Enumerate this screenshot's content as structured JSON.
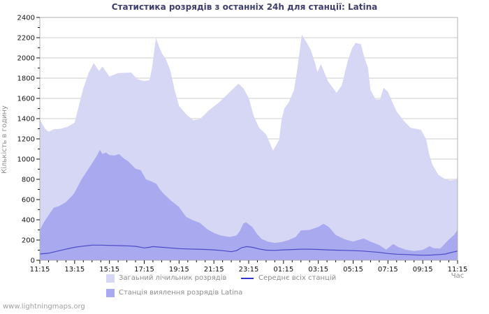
{
  "page": {
    "watermark": "www.lightningmaps.org"
  },
  "chart_data": {
    "type": "area",
    "title": "Статистика розрядів з останніх 24h для станції: Latina",
    "xlabel": "Час",
    "ylabel": "Кількість в годину",
    "ylim": [
      0,
      2400
    ],
    "y_major_step": 200,
    "y_minor_step": 100,
    "x_hours": 24,
    "x_minor_step_hours": 0.5,
    "x_start_label": "11:15",
    "x_unit": "hours_since_start",
    "grid": true,
    "legend_position": "bottom",
    "x_tick_labels": [
      "11:15",
      "13:15",
      "15:15",
      "17:15",
      "19:15",
      "21:15",
      "23:15",
      "01:15",
      "03:15",
      "05:15",
      "07:15",
      "09:15",
      "11:15"
    ],
    "colors": {
      "grid": "#cdcdcd",
      "frame": "#b0b0b0",
      "tick": "#111111",
      "tick_label": "#111111",
      "title": "#3e3e6e",
      "legend_line": "#3232cd"
    },
    "series": [
      {
        "name": "Загаьний лічильник розрядів",
        "type": "area",
        "color": "#d6d6f5",
        "points": [
          [
            0,
            1390
          ],
          [
            0.3,
            1300
          ],
          [
            0.5,
            1270
          ],
          [
            0.8,
            1295
          ],
          [
            1.2,
            1300
          ],
          [
            1.6,
            1320
          ],
          [
            2,
            1360
          ],
          [
            2.5,
            1700
          ],
          [
            2.8,
            1850
          ],
          [
            3.1,
            1950
          ],
          [
            3.4,
            1870
          ],
          [
            3.6,
            1915
          ],
          [
            4,
            1815
          ],
          [
            4.5,
            1850
          ],
          [
            5.25,
            1855
          ],
          [
            5.6,
            1790
          ],
          [
            6,
            1770
          ],
          [
            6.3,
            1780
          ],
          [
            6.45,
            1900
          ],
          [
            6.67,
            2200
          ],
          [
            6.83,
            2120
          ],
          [
            7,
            2050
          ],
          [
            7.25,
            1985
          ],
          [
            7.5,
            1875
          ],
          [
            7.75,
            1680
          ],
          [
            8,
            1525
          ],
          [
            8.4,
            1445
          ],
          [
            8.8,
            1385
          ],
          [
            9.2,
            1395
          ],
          [
            9.7,
            1480
          ],
          [
            10.3,
            1560
          ],
          [
            10.9,
            1660
          ],
          [
            11.4,
            1745
          ],
          [
            11.7,
            1700
          ],
          [
            12,
            1605
          ],
          [
            12.3,
            1420
          ],
          [
            12.6,
            1310
          ],
          [
            13,
            1245
          ],
          [
            13.4,
            1085
          ],
          [
            13.75,
            1190
          ],
          [
            13.9,
            1400
          ],
          [
            14.05,
            1500
          ],
          [
            14.3,
            1560
          ],
          [
            14.6,
            1680
          ],
          [
            14.8,
            1900
          ],
          [
            15.05,
            2230
          ],
          [
            15.3,
            2160
          ],
          [
            15.55,
            2085
          ],
          [
            15.8,
            1955
          ],
          [
            15.95,
            1860
          ],
          [
            16.15,
            1940
          ],
          [
            16.55,
            1770
          ],
          [
            17.05,
            1655
          ],
          [
            17.35,
            1730
          ],
          [
            17.7,
            1975
          ],
          [
            17.95,
            2100
          ],
          [
            18.15,
            2150
          ],
          [
            18.45,
            2135
          ],
          [
            18.65,
            2000
          ],
          [
            18.85,
            1905
          ],
          [
            19,
            1680
          ],
          [
            19.3,
            1590
          ],
          [
            19.55,
            1590
          ],
          [
            19.75,
            1705
          ],
          [
            20,
            1665
          ],
          [
            20.3,
            1545
          ],
          [
            20.5,
            1470
          ],
          [
            20.9,
            1380
          ],
          [
            21.3,
            1310
          ],
          [
            21.9,
            1290
          ],
          [
            22.2,
            1195
          ],
          [
            22.35,
            1060
          ],
          [
            22.55,
            945
          ],
          [
            22.9,
            845
          ],
          [
            23.3,
            800
          ],
          [
            23.6,
            788
          ],
          [
            23.85,
            795
          ],
          [
            24,
            815
          ]
        ]
      },
      {
        "name": "Станція виялення розрядів Latina",
        "type": "area",
        "color": "#a9a9ef",
        "points": [
          [
            0,
            300
          ],
          [
            0.25,
            380
          ],
          [
            0.5,
            445
          ],
          [
            0.8,
            520
          ],
          [
            1.1,
            535
          ],
          [
            1.5,
            575
          ],
          [
            1.9,
            645
          ],
          [
            2,
            670
          ],
          [
            2.4,
            800
          ],
          [
            2.8,
            905
          ],
          [
            3.1,
            985
          ],
          [
            3.3,
            1040
          ],
          [
            3.45,
            1090
          ],
          [
            3.6,
            1050
          ],
          [
            3.8,
            1065
          ],
          [
            4,
            1040
          ],
          [
            4.3,
            1035
          ],
          [
            4.55,
            1050
          ],
          [
            4.8,
            1010
          ],
          [
            5.1,
            975
          ],
          [
            5.5,
            905
          ],
          [
            5.8,
            890
          ],
          [
            5.95,
            845
          ],
          [
            6.1,
            800
          ],
          [
            6.4,
            780
          ],
          [
            6.7,
            755
          ],
          [
            6.9,
            700
          ],
          [
            7.1,
            660
          ],
          [
            7.5,
            595
          ],
          [
            7.9,
            540
          ],
          [
            8,
            525
          ],
          [
            8.4,
            430
          ],
          [
            8.8,
            395
          ],
          [
            9.2,
            370
          ],
          [
            9.6,
            310
          ],
          [
            10,
            270
          ],
          [
            10.4,
            245
          ],
          [
            10.9,
            230
          ],
          [
            11.3,
            245
          ],
          [
            11.5,
            290
          ],
          [
            11.7,
            365
          ],
          [
            11.85,
            375
          ],
          [
            12.2,
            330
          ],
          [
            12.5,
            255
          ],
          [
            12.75,
            210
          ],
          [
            13.1,
            185
          ],
          [
            13.5,
            172
          ],
          [
            13.9,
            180
          ],
          [
            14.3,
            200
          ],
          [
            14.7,
            230
          ],
          [
            15,
            295
          ],
          [
            15.5,
            300
          ],
          [
            16,
            330
          ],
          [
            16.3,
            360
          ],
          [
            16.6,
            330
          ],
          [
            17,
            250
          ],
          [
            17.5,
            208
          ],
          [
            18,
            185
          ],
          [
            18.6,
            215
          ],
          [
            19,
            185
          ],
          [
            19.5,
            150
          ],
          [
            19.9,
            105
          ],
          [
            20.3,
            160
          ],
          [
            20.6,
            130
          ],
          [
            21,
            105
          ],
          [
            21.5,
            92
          ],
          [
            22,
            103
          ],
          [
            22.4,
            140
          ],
          [
            22.6,
            120
          ],
          [
            23,
            115
          ],
          [
            23.5,
            205
          ],
          [
            23.8,
            250
          ],
          [
            24,
            300
          ]
        ]
      },
      {
        "name": "Середнє всіх станцій",
        "type": "line",
        "color": "#4a4ac8",
        "points": [
          [
            0,
            62
          ],
          [
            0.5,
            70
          ],
          [
            1,
            90
          ],
          [
            1.5,
            110
          ],
          [
            2,
            128
          ],
          [
            2.5,
            140
          ],
          [
            3,
            150
          ],
          [
            3.5,
            150
          ],
          [
            4,
            147
          ],
          [
            4.5,
            145
          ],
          [
            5,
            143
          ],
          [
            5.5,
            138
          ],
          [
            6,
            122
          ],
          [
            6.3,
            128
          ],
          [
            6.5,
            135
          ],
          [
            7,
            128
          ],
          [
            7.5,
            122
          ],
          [
            8,
            115
          ],
          [
            8.5,
            112
          ],
          [
            9,
            110
          ],
          [
            9.5,
            107
          ],
          [
            10,
            103
          ],
          [
            10.5,
            95
          ],
          [
            11,
            85
          ],
          [
            11.3,
            95
          ],
          [
            11.6,
            125
          ],
          [
            11.9,
            135
          ],
          [
            12.2,
            128
          ],
          [
            12.6,
            112
          ],
          [
            13,
            100
          ],
          [
            13.5,
            98
          ],
          [
            14,
            103
          ],
          [
            14.5,
            106
          ],
          [
            15,
            110
          ],
          [
            15.5,
            110
          ],
          [
            16,
            107
          ],
          [
            16.5,
            103
          ],
          [
            17,
            100
          ],
          [
            17.5,
            98
          ],
          [
            18,
            95
          ],
          [
            18.5,
            92
          ],
          [
            19,
            85
          ],
          [
            19.5,
            78
          ],
          [
            20,
            67
          ],
          [
            20.5,
            60
          ],
          [
            21,
            57
          ],
          [
            21.5,
            53
          ],
          [
            22,
            50
          ],
          [
            22.5,
            52
          ],
          [
            23,
            57
          ],
          [
            23.3,
            62
          ],
          [
            23.7,
            80
          ],
          [
            24,
            90
          ]
        ]
      }
    ]
  }
}
